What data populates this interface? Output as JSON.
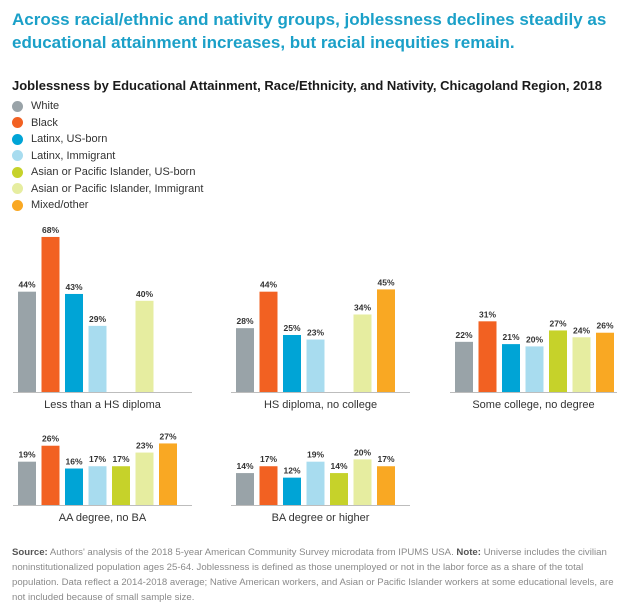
{
  "headline": "Across racial/ethnic and nativity groups, joblessness declines steadily as educational attainment increases, but racial inequities remain.",
  "source": {
    "source_label": "Source:",
    "source_text": "Authors' analysis of the 2018 5-year American Community Survey microdata from IPUMS USA.",
    "note_label": "Note:",
    "note_text": "Universe includes the civilian noninstitutionalized population ages 25-64. Joblessness is defined as those unemployed or not in the labor force as a share of the total population. Data reflect a 2014-2018 average; Native American workers, and Asian or Pacific Islander workers at some educational levels, are not included because of small sample size."
  },
  "chart_data": {
    "type": "bar",
    "title": "Joblessness by Educational Attainment, Race/Ethnicity, and Nativity, Chicagoland Region, 2018",
    "legend_position": "top-left",
    "grid": false,
    "ylim": [
      0,
      70
    ],
    "series": [
      {
        "name": "White",
        "color": "#99a3a8"
      },
      {
        "name": "Black",
        "color": "#f26122"
      },
      {
        "name": "Latinx, US-born",
        "color": "#00a4d6"
      },
      {
        "name": "Latinx, Immigrant",
        "color": "#a8dcef"
      },
      {
        "name": "Asian or Pacific Islander, US-born",
        "color": "#c6d22a"
      },
      {
        "name": "Asian or Pacific Islander, Immigrant",
        "color": "#e6eda0"
      },
      {
        "name": "Mixed/other",
        "color": "#f9a823"
      }
    ],
    "panels": [
      {
        "category": "Less than a HS diploma",
        "values": [
          44,
          68,
          43,
          29,
          null,
          40,
          null
        ],
        "labels": [
          "44%",
          "68%",
          "43%",
          "29%",
          "",
          "40%",
          ""
        ]
      },
      {
        "category": "HS diploma, no college",
        "values": [
          28,
          44,
          25,
          23,
          null,
          34,
          45
        ],
        "labels": [
          "28%",
          "44%",
          "25%",
          "23%",
          "",
          "34%",
          "45%"
        ]
      },
      {
        "category": "Some college, no degree",
        "values": [
          22,
          31,
          21,
          20,
          27,
          24,
          26
        ],
        "labels": [
          "22%",
          "31%",
          "21%",
          "20%",
          "27%",
          "24%",
          "26%"
        ]
      },
      {
        "category": "AA degree, no BA",
        "values": [
          19,
          26,
          16,
          17,
          17,
          23,
          27
        ],
        "labels": [
          "19%",
          "26%",
          "16%",
          "17%",
          "17%",
          "23%",
          "27%"
        ]
      },
      {
        "category": "BA degree or higher",
        "values": [
          14,
          17,
          12,
          19,
          14,
          20,
          17
        ],
        "labels": [
          "14%",
          "17%",
          "12%",
          "19%",
          "14%",
          "20%",
          "17%"
        ]
      }
    ]
  }
}
